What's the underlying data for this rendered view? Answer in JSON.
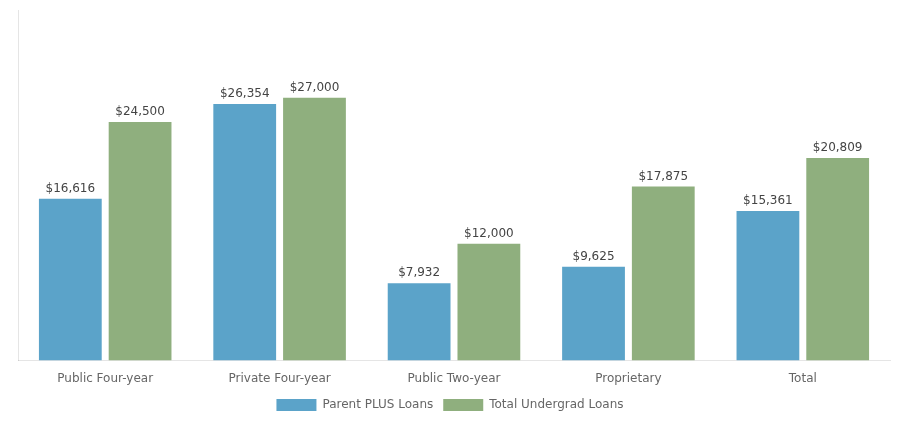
{
  "chart_data": {
    "type": "bar",
    "categories": [
      "Public Four-year",
      "Private Four-year",
      "Public Two-year",
      "Proprietary",
      "Total"
    ],
    "series": [
      {
        "name": "Parent PLUS Loans",
        "color": "#5BA3C9",
        "values": [
          16616,
          26354,
          7932,
          9625,
          15361
        ],
        "value_labels": [
          "$16,616",
          "$26,354",
          "$7,932",
          "$9,625",
          "$15,361"
        ]
      },
      {
        "name": "Total Undergrad Loans",
        "color": "#8FAF7E",
        "values": [
          24500,
          27000,
          12000,
          17875,
          20809
        ],
        "value_labels": [
          "$24,500",
          "$27,000",
          "$12,000",
          "$17,875",
          "$20,809"
        ]
      }
    ],
    "ylim": [
      0,
      36000
    ],
    "grid": false,
    "legend": "bottom",
    "data_labels": true,
    "tick_labels": "x"
  }
}
